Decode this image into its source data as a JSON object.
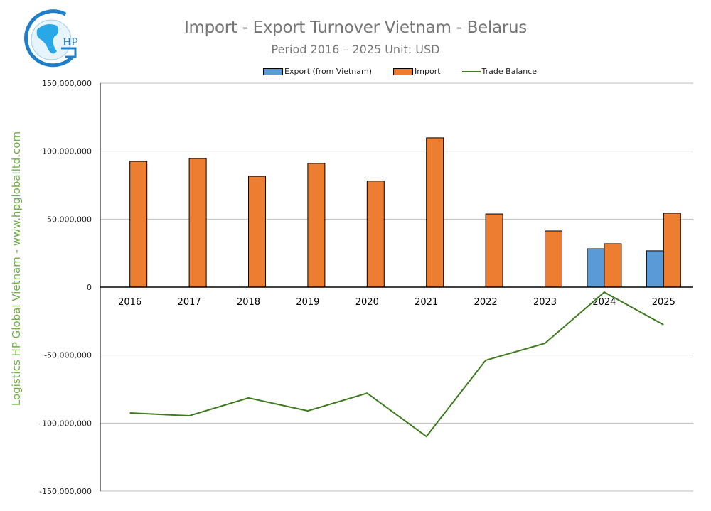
{
  "header": {
    "title": "Import - Export Turnover Vietnam - Belarus",
    "subtitle": "Period 2016 – 2025  Unit: USD",
    "logo_text": "HP",
    "watermark": "Logistics HP Global Vietnam - www.hpgloballtd.com"
  },
  "legend": [
    {
      "label": "Export (from Vietnam)",
      "color": "#5b9bd5",
      "kind": "bar"
    },
    {
      "label": "Import",
      "color": "#ed7d31",
      "kind": "bar"
    },
    {
      "label": "Trade Balance",
      "color": "#3f7a1f",
      "kind": "line"
    }
  ],
  "colors": {
    "export": "#5b9bd5",
    "import": "#ed7d31",
    "balance": "#3f7a1f",
    "grid": "#bfbfbf",
    "watermark": "#70ad47"
  },
  "chart_data": {
    "type": "bar",
    "title": "Import - Export Turnover Vietnam - Belarus",
    "subtitle": "Period 2016 – 2025  Unit: USD",
    "xlabel": "",
    "ylabel": "",
    "categories": [
      "2016",
      "2017",
      "2018",
      "2019",
      "2020",
      "2021",
      "2022",
      "2023",
      "2024",
      "2025"
    ],
    "series": [
      {
        "name": "Export (from Vietnam)",
        "type": "bar",
        "values": [
          0,
          0,
          0,
          0,
          0,
          0,
          0,
          0,
          28200000,
          26700000
        ]
      },
      {
        "name": "Import",
        "type": "bar",
        "values": [
          92500000,
          94600000,
          81500000,
          91000000,
          78000000,
          109800000,
          53800000,
          41300000,
          31900000,
          54400000
        ]
      },
      {
        "name": "Trade Balance",
        "type": "line",
        "values": [
          -92500000,
          -94600000,
          -81500000,
          -91000000,
          -78000000,
          -109800000,
          -53800000,
          -41300000,
          -3700000,
          -27700000
        ]
      }
    ],
    "ylim": [
      -150000000,
      150000000
    ],
    "yticks": [
      150000000,
      100000000,
      50000000,
      0,
      -50000000,
      -100000000,
      -150000000
    ],
    "ytick_labels": [
      "150,000,000",
      "100,000,000",
      "50,000,000",
      "0",
      "-50,000,000",
      "-100,000,000",
      "-150,000,000"
    ],
    "grid": true,
    "legend_position": "top"
  }
}
